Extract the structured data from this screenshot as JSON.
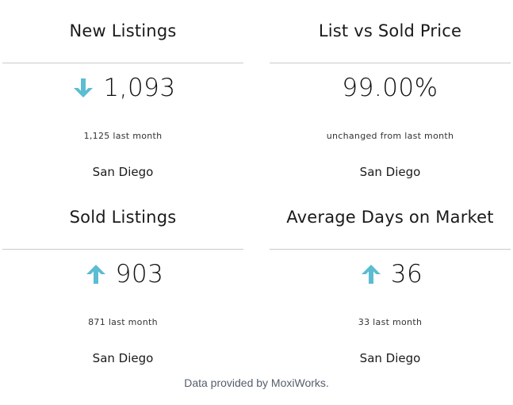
{
  "accent_color": "#5bbcd2",
  "cards": [
    {
      "title": "New Listings",
      "value": "1,093",
      "trend_icon": "arrow-down-icon",
      "comparison": "1,125 last month",
      "location": "San Diego"
    },
    {
      "title": "List vs Sold Price",
      "value": "99.00%",
      "trend_icon": "",
      "comparison": "unchanged from last month",
      "location": "San Diego"
    },
    {
      "title": "Sold Listings",
      "value": "903",
      "trend_icon": "arrow-up-icon",
      "comparison": "871 last month",
      "location": "San Diego"
    },
    {
      "title": "Average Days on Market",
      "value": "36",
      "trend_icon": "arrow-up-icon",
      "comparison": "33 last month",
      "location": "San Diego"
    }
  ],
  "footer": {
    "text": "Data provided by MoxiWorks."
  }
}
